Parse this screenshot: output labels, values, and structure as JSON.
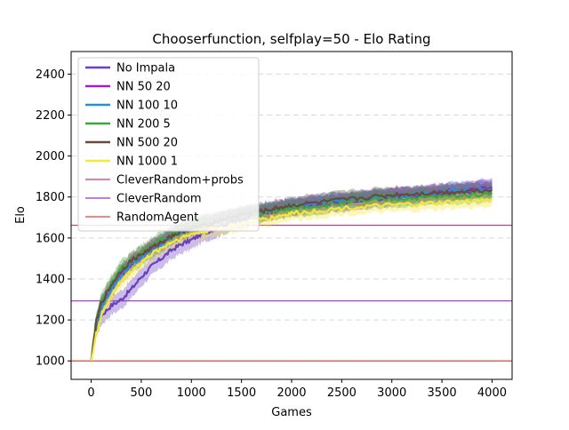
{
  "chart_data": {
    "type": "line",
    "title": "Chooserfunction, selfplay=50 - Elo Rating",
    "xlabel": "Games",
    "ylabel": "Elo",
    "xlim": [
      -200,
      4200
    ],
    "ylim": [
      910,
      2510
    ],
    "xticks": [
      0,
      500,
      1000,
      1500,
      2000,
      2500,
      3000,
      3500,
      4000
    ],
    "yticks": [
      1000,
      1200,
      1400,
      1600,
      1800,
      2000,
      2200,
      2400
    ],
    "grid": "horizontal dashed",
    "legend_position": "top-left",
    "x": [
      0,
      50,
      100,
      200,
      300,
      400,
      500,
      600,
      700,
      800,
      900,
      1000,
      1100,
      1200,
      1300,
      1400,
      1500,
      1600,
      1700,
      1800,
      1900,
      2000,
      2200,
      2400,
      2600,
      2800,
      3000,
      3200,
      3400,
      3600,
      3800,
      4000
    ],
    "series": [
      {
        "name": "No Impala",
        "color": "#6b3fbf",
        "band": 45,
        "values": [
          1000,
          1150,
          1220,
          1270,
          1300,
          1350,
          1410,
          1460,
          1500,
          1540,
          1570,
          1590,
          1620,
          1640,
          1660,
          1680,
          1690,
          1710,
          1720,
          1730,
          1740,
          1750,
          1760,
          1770,
          1780,
          1790,
          1800,
          1805,
          1810,
          1820,
          1830,
          1850
        ]
      },
      {
        "name": "NN 50 20",
        "color": "#a020c8",
        "band": 40,
        "values": [
          1000,
          1180,
          1270,
          1350,
          1420,
          1470,
          1510,
          1550,
          1580,
          1610,
          1630,
          1650,
          1670,
          1680,
          1690,
          1700,
          1710,
          1715,
          1720,
          1730,
          1740,
          1750,
          1760,
          1770,
          1780,
          1790,
          1800,
          1810,
          1820,
          1830,
          1835,
          1845
        ]
      },
      {
        "name": "NN 100 10",
        "color": "#2590d8",
        "band": 40,
        "values": [
          1000,
          1170,
          1260,
          1350,
          1420,
          1470,
          1500,
          1540,
          1570,
          1600,
          1630,
          1650,
          1660,
          1670,
          1690,
          1700,
          1710,
          1720,
          1725,
          1735,
          1745,
          1755,
          1765,
          1775,
          1785,
          1795,
          1800,
          1810,
          1815,
          1830,
          1835,
          1840
        ]
      },
      {
        "name": "NN 200 5",
        "color": "#3aab3a",
        "band": 40,
        "values": [
          1000,
          1200,
          1290,
          1380,
          1450,
          1490,
          1530,
          1560,
          1590,
          1620,
          1640,
          1660,
          1670,
          1680,
          1690,
          1700,
          1710,
          1715,
          1720,
          1730,
          1735,
          1745,
          1755,
          1765,
          1775,
          1785,
          1790,
          1795,
          1800,
          1805,
          1810,
          1820
        ]
      },
      {
        "name": "NN 500 20",
        "color": "#6b4a3a",
        "band": 40,
        "values": [
          1000,
          1190,
          1280,
          1370,
          1440,
          1490,
          1520,
          1550,
          1580,
          1610,
          1630,
          1650,
          1660,
          1670,
          1690,
          1700,
          1715,
          1725,
          1730,
          1740,
          1750,
          1760,
          1770,
          1780,
          1790,
          1800,
          1810,
          1815,
          1820,
          1825,
          1830,
          1835
        ]
      },
      {
        "name": "NN 1000 1",
        "color": "#f3e840",
        "band": 35,
        "values": [
          1000,
          1130,
          1220,
          1320,
          1390,
          1440,
          1480,
          1520,
          1550,
          1580,
          1600,
          1620,
          1630,
          1640,
          1650,
          1660,
          1670,
          1680,
          1690,
          1700,
          1710,
          1720,
          1730,
          1740,
          1750,
          1755,
          1760,
          1765,
          1770,
          1775,
          1780,
          1790
        ]
      }
    ],
    "reference_lines": [
      {
        "name": "CleverRandom+probs",
        "color": "#d6336e",
        "value": 1662
      },
      {
        "name": "CleverRandom",
        "color": "#9b30c0",
        "value": 1293
      },
      {
        "name": "RandomAgent",
        "color": "#e8453c",
        "value": 1000
      }
    ]
  }
}
